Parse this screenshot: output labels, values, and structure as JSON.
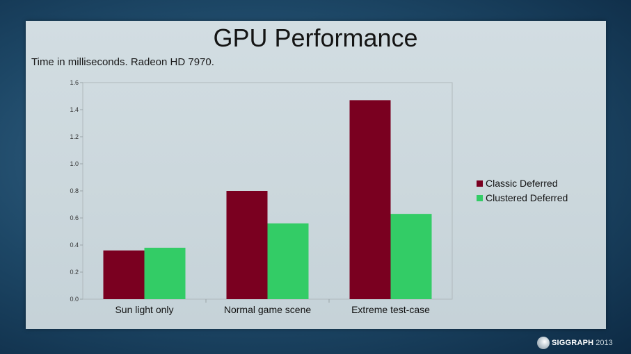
{
  "slide": {
    "title": "GPU Performance",
    "subtitle": "Time in milliseconds. Radeon HD 7970.",
    "logo_text": "SIGGRAPH",
    "logo_year": "2013"
  },
  "chart_data": {
    "type": "bar",
    "title": "",
    "xlabel": "",
    "ylabel": "",
    "categories": [
      "Sun light only",
      "Normal game scene",
      "Extreme test-case"
    ],
    "series": [
      {
        "name": "Classic Deferred",
        "values": [
          0.36,
          0.8,
          1.47
        ],
        "color": "#7a0020"
      },
      {
        "name": "Clustered Deferred",
        "values": [
          0.38,
          0.56,
          0.63
        ],
        "color": "#33cc66"
      }
    ],
    "ylim": [
      0,
      1.6
    ],
    "yticks": [
      "0.0",
      "0.2",
      "0.4",
      "0.6",
      "0.8",
      "1.0",
      "1.2",
      "1.4",
      "1.6"
    ],
    "grid": false,
    "legend_position": "right"
  }
}
